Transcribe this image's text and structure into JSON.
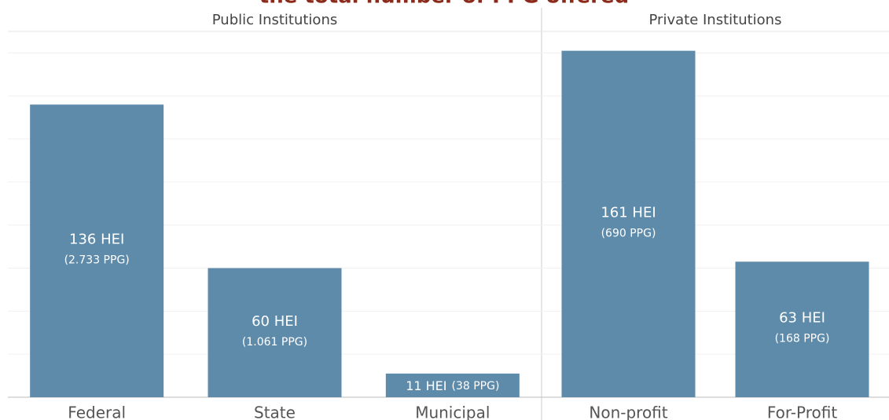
{
  "chart_data": {
    "type": "bar",
    "title": "the total number of PPG offered",
    "color": "#5f8bab",
    "ylim": [
      0,
      170
    ],
    "yticks": [
      0,
      20,
      40,
      60,
      80,
      100,
      120,
      140,
      160
    ],
    "grid": true,
    "panels": [
      {
        "label": "Public Institutions",
        "categories": [
          "Federal",
          "State",
          "Municipal"
        ],
        "values": [
          136,
          60,
          11
        ],
        "value_labels": [
          "136 HEI",
          "60 HEI",
          "11 HEI"
        ],
        "annotations": [
          "(2.733 PPG)",
          "(1.061 PPG)",
          "(38 PPG)"
        ]
      },
      {
        "label": "Private Institutions",
        "categories": [
          "Non-profit",
          "For-Profit"
        ],
        "values": [
          161,
          63
        ],
        "value_labels": [
          "161 HEI",
          "63 HEI"
        ],
        "annotations": [
          "(690 PPG)",
          "(168 PPG)"
        ]
      }
    ]
  }
}
